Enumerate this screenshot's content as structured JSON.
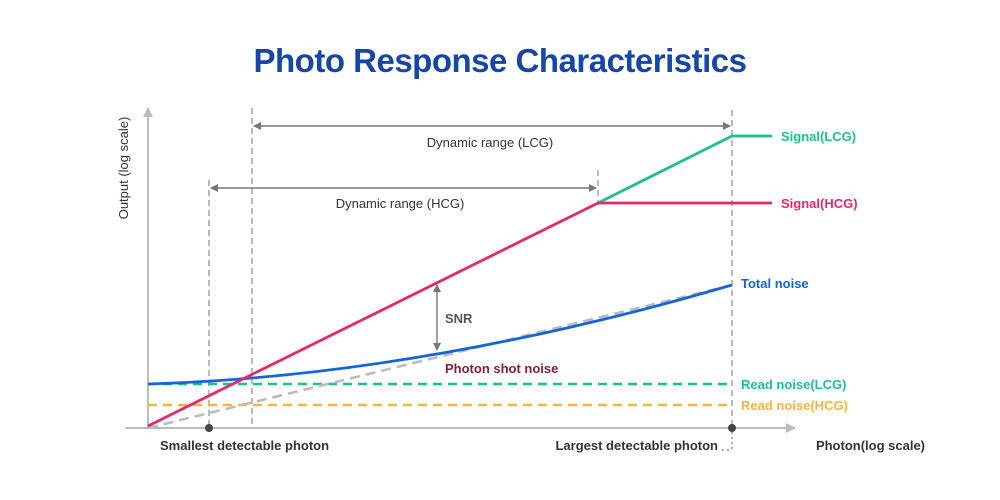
{
  "title": "Photo Response Characteristics",
  "axes": {
    "y_label": "Output (log scale)",
    "x_label": "Photon(log scale)"
  },
  "ranges": {
    "lcg": "Dynamic range (LCG)",
    "hcg": "Dynamic range (HCG)"
  },
  "markers": {
    "snr": "SNR",
    "smallest": "Smallest detectable photon",
    "largest": "Largest detectable photon"
  },
  "curves": {
    "signal_lcg": "Signal(LCG)",
    "signal_hcg": "Signal(HCG)",
    "total_noise": "Total noise",
    "photon_shot_noise": "Photon shot noise",
    "read_noise_lcg": "Read noise(LCG)",
    "read_noise_hcg": "Read noise(HCG)"
  },
  "colors": {
    "title": "#1747a6",
    "signal_lcg": "#1fbf8f",
    "signal_hcg": "#e3296b",
    "total_noise": "#1565d8",
    "photon_shot_noise": "#8a1c3c",
    "read_noise_lcg": "#1fbf8f",
    "read_noise_hcg": "#f5b63a",
    "guide": "#aaaaaa",
    "axis": "#999999"
  }
}
